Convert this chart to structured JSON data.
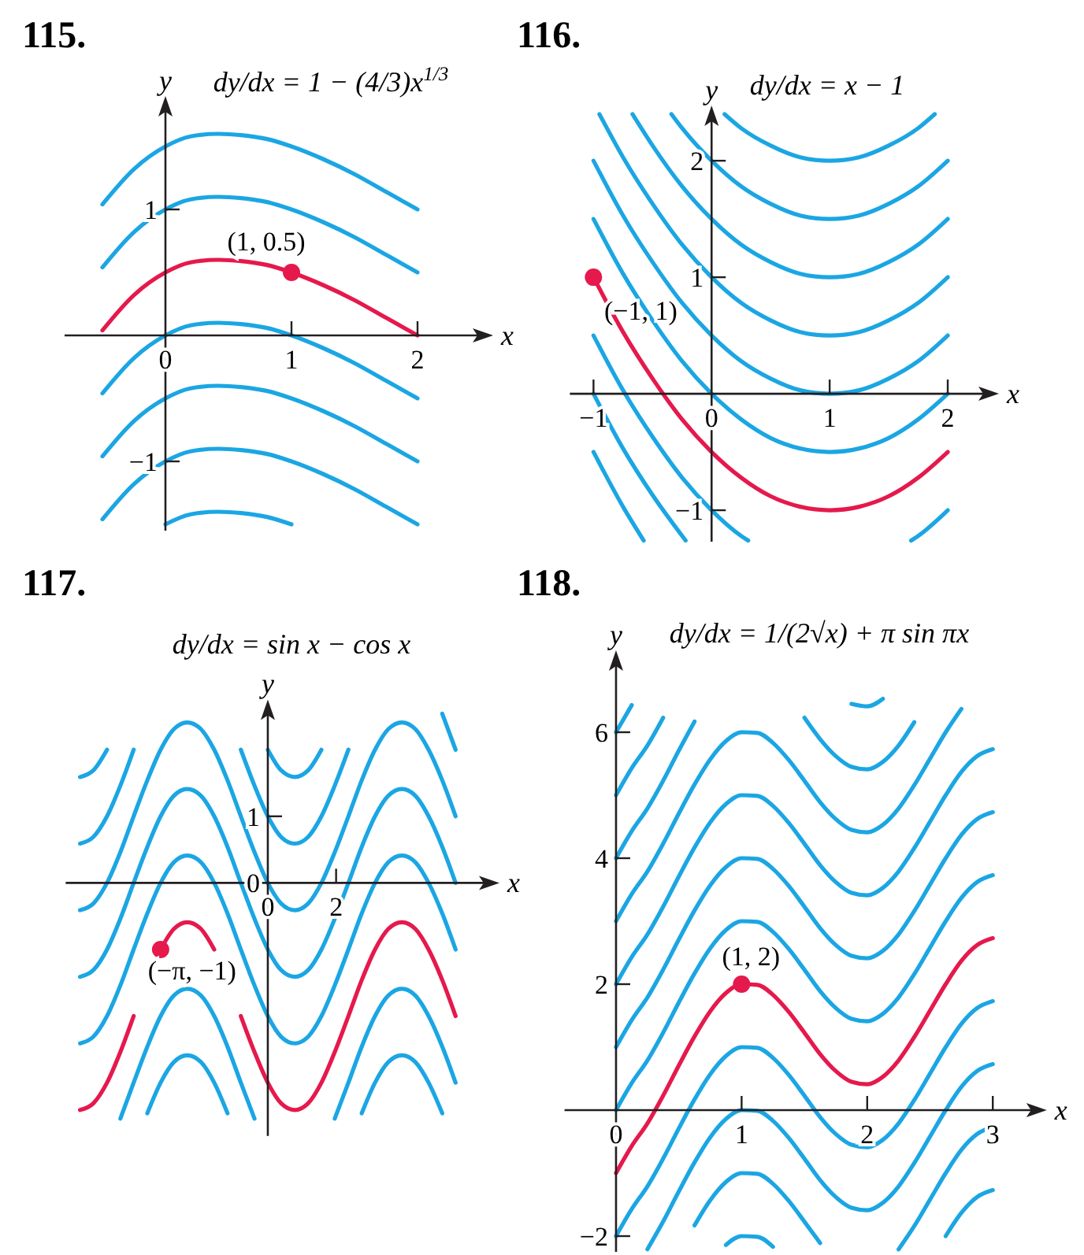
{
  "chart_data": [
    {
      "type": "line",
      "title": "115.",
      "subtitle": "dy/dx = 1 − (4/3)x$^{1/3}$",
      "xlabel": "x",
      "ylabel": "y",
      "xlim": [
        -0.8,
        2.55
      ],
      "ylim": [
        -1.55,
        1.85
      ],
      "xticks": [
        0,
        1,
        2
      ],
      "yticks": [
        -1,
        1
      ],
      "x": [
        -0.5,
        -0.25,
        0,
        0.2,
        0.42,
        0.6,
        0.8,
        1,
        1.25,
        1.5,
        1.75,
        2
      ],
      "series": [
        {
          "color": "#1ba6e3",
          "values": [
            1.04,
            1.32,
            1.5,
            1.58,
            1.6,
            1.59,
            1.56,
            1.5,
            1.4,
            1.28,
            1.14,
            1
          ]
        },
        {
          "color": "#1ba6e3",
          "values": [
            0.54,
            0.82,
            1,
            1.08,
            1.1,
            1.09,
            1.06,
            1,
            0.9,
            0.78,
            0.64,
            0.5
          ]
        },
        {
          "color": "#e5194c",
          "values": [
            0.04,
            0.32,
            0.5,
            0.58,
            0.6,
            0.59,
            0.56,
            0.5,
            0.4,
            0.28,
            0.14,
            0
          ]
        },
        {
          "color": "#1ba6e3",
          "values": [
            -0.46,
            -0.18,
            0,
            0.08,
            0.1,
            0.09,
            0.06,
            0,
            -0.1,
            -0.22,
            -0.36,
            -0.5
          ]
        },
        {
          "color": "#1ba6e3",
          "values": [
            -0.96,
            -0.68,
            -0.5,
            -0.42,
            -0.4,
            -0.41,
            -0.44,
            -0.5,
            -0.6,
            -0.72,
            -0.86,
            -1
          ]
        },
        {
          "color": "#1ba6e3",
          "values": [
            -1.46,
            -1.18,
            -1,
            -0.92,
            -0.9,
            -0.91,
            -0.94,
            -1,
            -1.1,
            -1.22,
            -1.36,
            -1.5
          ]
        },
        {
          "color": "#1ba6e3",
          "values": [
            null,
            null,
            -1.5,
            -1.42,
            -1.4,
            -1.41,
            -1.44,
            -1.5,
            null,
            null,
            null,
            null
          ]
        },
        {
          "type": "scatter",
          "marker": "circle",
          "color": "#e5194c",
          "x": [
            1
          ],
          "values": [
            0.5
          ]
        }
      ],
      "annotations": [
        {
          "text": "(1, 0.5)",
          "x": 1,
          "y": 0.5
        }
      ]
    },
    {
      "type": "line",
      "title": "116.",
      "subtitle": "dy/dx = x − 1",
      "xlabel": "x",
      "ylabel": "y",
      "xlim": [
        -1.2,
        2.38
      ],
      "ylim": [
        -1.27,
        2.42
      ],
      "xticks": [
        -1,
        0,
        1,
        2
      ],
      "yticks": [
        -1,
        1,
        2
      ],
      "series": [
        {
          "color": "#1ba6e3",
          "x": [
            0.11,
            0.25,
            0.5,
            0.75,
            1,
            1.25,
            1.5,
            1.75,
            1.89
          ],
          "values": [
            2.4,
            2.28,
            2.13,
            2.03,
            2,
            2.03,
            2.13,
            2.28,
            2.4
          ]
        },
        {
          "color": "#1ba6e3",
          "x": [
            -0.34,
            -0.25,
            0,
            0.25,
            0.5,
            0.75,
            1,
            1.25,
            1.5,
            1.75,
            2
          ],
          "values": [
            2.4,
            2.28,
            2,
            1.78,
            1.63,
            1.53,
            1.5,
            1.53,
            1.63,
            1.78,
            2
          ]
        },
        {
          "color": "#1ba6e3",
          "x": [
            -0.67,
            -0.5,
            -0.25,
            0,
            0.25,
            0.5,
            0.75,
            1,
            1.25,
            1.5,
            1.75,
            2
          ],
          "values": [
            2.4,
            2.13,
            1.78,
            1.5,
            1.28,
            1.13,
            1.03,
            1,
            1.03,
            1.13,
            1.28,
            1.5
          ]
        },
        {
          "color": "#1ba6e3",
          "x": [
            -0.95,
            -0.75,
            -0.5,
            -0.25,
            0,
            0.25,
            0.5,
            0.75,
            1,
            1.25,
            1.5,
            1.75,
            2
          ],
          "values": [
            2.4,
            2.03,
            1.63,
            1.28,
            1,
            0.78,
            0.63,
            0.53,
            0.5,
            0.53,
            0.63,
            0.78,
            1
          ]
        },
        {
          "color": "#1ba6e3",
          "x": [
            -1,
            -0.75,
            -0.5,
            -0.25,
            0,
            0.25,
            0.5,
            0.75,
            1,
            1.25,
            1.5,
            1.75,
            2
          ],
          "values": [
            2,
            1.53,
            1.13,
            0.78,
            0.5,
            0.28,
            0.13,
            0.03,
            0,
            0.03,
            0.13,
            0.28,
            0.5
          ]
        },
        {
          "color": "#1ba6e3",
          "x": [
            -1,
            -0.75,
            -0.5,
            -0.25,
            0,
            0.25,
            0.5,
            0.75,
            1,
            1.25,
            1.5,
            1.75,
            2
          ],
          "values": [
            1.5,
            1.03,
            0.63,
            0.28,
            0,
            -0.22,
            -0.38,
            -0.47,
            -0.5,
            -0.47,
            -0.38,
            -0.22,
            0
          ]
        },
        {
          "color": "#e5194c",
          "x": [
            -1,
            -0.75,
            -0.5,
            -0.25,
            0,
            0.25,
            0.5,
            0.75,
            1,
            1.25,
            1.5,
            1.75,
            2
          ],
          "values": [
            1,
            0.53,
            0.13,
            -0.22,
            -0.5,
            -0.72,
            -0.88,
            -0.97,
            -1,
            -0.97,
            -0.88,
            -0.72,
            -0.5
          ]
        },
        {
          "color": "#1ba6e3",
          "x": [
            -1,
            -0.75,
            -0.5,
            -0.25,
            0,
            0.25,
            0.31,
            1,
            1.69,
            1.75,
            2
          ],
          "values": [
            0.5,
            0.03,
            -0.37,
            -0.72,
            -1,
            -1.22,
            -1.26,
            null,
            -1.26,
            -1.22,
            -1
          ]
        },
        {
          "color": "#1ba6e3",
          "x": [
            -1,
            -0.75,
            -0.5,
            -0.22
          ],
          "values": [
            0,
            -0.47,
            -0.87,
            -1.26
          ]
        },
        {
          "color": "#1ba6e3",
          "x": [
            -1,
            -0.75,
            -0.575
          ],
          "values": [
            -0.5,
            -0.97,
            -1.26
          ]
        },
        {
          "type": "scatter",
          "marker": "circle",
          "color": "#e5194c",
          "x": [
            -1
          ],
          "values": [
            1
          ]
        }
      ],
      "annotations": [
        {
          "text": "(−1, 1)",
          "x": -1,
          "y": 1
        }
      ]
    },
    {
      "type": "line",
      "title": "117.",
      "subtitle": "dy/dx = sin x − cos x",
      "xlabel": "x",
      "ylabel": "y",
      "xlim": [
        -5.92,
        6.6
      ],
      "ylim": [
        -3.8,
        2.66
      ],
      "xticks": [
        0,
        2
      ],
      "yticks": [
        0,
        1
      ],
      "x": [
        -5.5,
        -5.11,
        -4.71,
        -4.32,
        -3.93,
        -3.53,
        -3.14,
        -2.75,
        -2.36,
        -1.96,
        -1.57,
        -1.18,
        -0.79,
        -0.39,
        0,
        0.39,
        0.79,
        1.18,
        1.57,
        1.96,
        2.36,
        2.75,
        3.14,
        3.53,
        3.93,
        4.32,
        4.71,
        5.11,
        5.5
      ],
      "series": [
        {
          "color": "#1ba6e3",
          "values": [
            1.59,
            1.69,
            2,
            null,
            null,
            null,
            null,
            null,
            null,
            null,
            null,
            null,
            null,
            null,
            2,
            1.69,
            1.59,
            1.69,
            2,
            null,
            null,
            null,
            null,
            null,
            null,
            null,
            null,
            null,
            null
          ]
        },
        {
          "color": "#1ba6e3",
          "values": [
            0.59,
            0.69,
            1,
            1.46,
            2,
            null,
            null,
            null,
            null,
            null,
            null,
            null,
            2,
            1.46,
            1,
            0.69,
            0.59,
            0.69,
            1,
            1.46,
            2,
            null,
            null,
            null,
            null,
            null,
            null,
            2.54,
            2
          ]
        },
        {
          "color": "#1ba6e3",
          "values": [
            -0.41,
            -0.31,
            0,
            0.46,
            1,
            1.54,
            2,
            2.31,
            2.41,
            2.31,
            2,
            1.54,
            1,
            0.46,
            0,
            -0.31,
            -0.41,
            -0.31,
            0,
            0.46,
            1,
            1.54,
            2,
            2.31,
            2.41,
            2.31,
            2,
            1.54,
            1
          ]
        },
        {
          "color": "#1ba6e3",
          "values": [
            -1.41,
            -1.31,
            -1,
            -0.54,
            0,
            0.54,
            1,
            1.31,
            1.41,
            1.31,
            1,
            0.54,
            0,
            -0.54,
            -1,
            -1.31,
            -1.41,
            -1.31,
            -1,
            -0.54,
            0,
            0.54,
            1,
            1.31,
            1.41,
            1.31,
            1,
            0.54,
            0
          ]
        },
        {
          "color": "#1ba6e3",
          "values": [
            -2.41,
            -2.31,
            -2,
            -1.54,
            -1,
            -0.46,
            0,
            0.31,
            0.41,
            0.31,
            0,
            -0.46,
            -1,
            -1.54,
            -2,
            -2.31,
            -2.41,
            -2.31,
            -2,
            -1.54,
            -1,
            -0.46,
            0,
            0.31,
            0.41,
            0.31,
            0,
            -0.46,
            -1
          ]
        },
        {
          "color": "#e5194c",
          "values": [
            -3.41,
            -3.31,
            -3,
            -2.54,
            -2,
            null,
            -1,
            -0.69,
            -0.59,
            -0.69,
            -1,
            null,
            -2,
            -2.54,
            -3,
            -3.31,
            -3.41,
            -3.31,
            -3,
            -2.54,
            -2,
            -1.46,
            -1,
            -0.69,
            -0.59,
            -0.69,
            -1,
            -1.46,
            -2
          ]
        },
        {
          "color": "#1ba6e3",
          "values": [
            null,
            null,
            null,
            -3.54,
            -3,
            -2.46,
            -2,
            -1.69,
            -1.59,
            -1.69,
            -2,
            -2.46,
            -3,
            -3.54,
            null,
            null,
            null,
            null,
            null,
            -3.54,
            -3,
            -2.46,
            -2,
            -1.69,
            -1.59,
            -1.69,
            -2,
            -2.46,
            -3
          ]
        },
        {
          "color": "#1ba6e3",
          "values": [
            null,
            null,
            null,
            null,
            null,
            -3.46,
            -3,
            -2.69,
            -2.59,
            -2.69,
            -3,
            -3.46,
            null,
            null,
            null,
            null,
            null,
            null,
            null,
            null,
            null,
            -3.46,
            -3,
            -2.69,
            -2.59,
            -2.69,
            -3,
            -3.46,
            null
          ]
        },
        {
          "type": "scatter",
          "marker": "circle",
          "color": "#e5194c",
          "x": [
            -3.14
          ],
          "values": [
            -1
          ]
        }
      ],
      "annotations": [
        {
          "text": "(−π, −1)",
          "x": -3.14,
          "y": -1
        }
      ]
    },
    {
      "type": "line",
      "title": "118.",
      "subtitle": "dy/dx = 1/(2√x) + π sin πx",
      "xlabel": "x",
      "ylabel": "y",
      "xlim": [
        -0.41,
        3.38
      ],
      "ylim": [
        -2.25,
        7.2
      ],
      "xticks": [
        0,
        1,
        2,
        3
      ],
      "yticks": [
        -2,
        2,
        4,
        6
      ],
      "x": [
        0,
        0.125,
        0.25,
        0.375,
        0.5,
        0.625,
        0.75,
        0.875,
        1,
        1.125,
        1.25,
        1.375,
        1.5,
        1.625,
        1.75,
        1.875,
        2,
        2.125,
        2.25,
        2.375,
        2.5,
        2.625,
        2.75,
        2.875,
        3
      ],
      "series": [
        {
          "color": "#1ba6e3",
          "values": [
            6,
            6.43,
            null,
            null,
            null,
            null,
            null,
            null,
            null,
            null,
            null,
            null,
            null,
            null,
            null,
            null,
            null,
            null,
            null,
            null,
            null,
            null,
            null,
            null,
            null
          ]
        },
        {
          "color": "#1ba6e3",
          "values": [
            5,
            5.43,
            5.79,
            6.23,
            null,
            null,
            null,
            null,
            null,
            null,
            null,
            null,
            null,
            null,
            null,
            6.45,
            6.41,
            6.53,
            null,
            null,
            null,
            null,
            null,
            null,
            null
          ]
        },
        {
          "color": "#1ba6e3",
          "values": [
            4,
            4.43,
            4.79,
            5.23,
            5.71,
            6.17,
            null,
            null,
            null,
            null,
            null,
            null,
            6.23,
            5.89,
            5.62,
            5.45,
            5.41,
            5.53,
            5.79,
            6.16,
            null,
            null,
            null,
            null,
            null
          ]
        },
        {
          "color": "#1ba6e3",
          "values": [
            3,
            3.43,
            3.79,
            4.23,
            4.71,
            5.17,
            5.57,
            5.86,
            6,
            5.99,
            5.83,
            5.56,
            5.23,
            4.89,
            4.62,
            4.45,
            4.41,
            4.53,
            4.79,
            5.16,
            5.58,
            6,
            6.37,
            null,
            null
          ]
        },
        {
          "color": "#1ba6e3",
          "values": [
            2,
            2.43,
            2.79,
            3.23,
            3.71,
            4.17,
            4.57,
            4.86,
            5,
            4.99,
            4.83,
            4.56,
            4.23,
            3.89,
            3.62,
            3.45,
            3.41,
            3.53,
            3.79,
            4.16,
            4.58,
            5,
            5.37,
            5.62,
            5.73
          ]
        },
        {
          "color": "#1ba6e3",
          "values": [
            1,
            1.43,
            1.79,
            2.23,
            2.71,
            3.17,
            3.57,
            3.86,
            4,
            3.99,
            3.83,
            3.56,
            3.23,
            2.89,
            2.62,
            2.45,
            2.41,
            2.53,
            2.79,
            3.16,
            3.58,
            4,
            4.37,
            4.62,
            4.73
          ]
        },
        {
          "color": "#1ba6e3",
          "values": [
            0,
            0.43,
            0.79,
            1.23,
            1.71,
            2.17,
            2.57,
            2.86,
            3,
            2.99,
            2.83,
            2.56,
            2.23,
            1.89,
            1.62,
            1.45,
            1.41,
            1.53,
            1.79,
            2.16,
            2.58,
            3,
            3.37,
            3.62,
            3.73
          ]
        },
        {
          "color": "#e5194c",
          "values": [
            -1,
            -0.57,
            -0.21,
            0.23,
            0.71,
            1.17,
            1.57,
            1.86,
            2,
            1.99,
            1.83,
            1.56,
            1.23,
            0.89,
            0.62,
            0.45,
            0.41,
            0.53,
            0.79,
            1.16,
            1.58,
            2,
            2.37,
            2.62,
            2.73
          ]
        },
        {
          "color": "#1ba6e3",
          "values": [
            -2,
            -1.57,
            -1.21,
            -0.77,
            -0.29,
            0.17,
            0.57,
            0.86,
            1,
            0.99,
            0.83,
            0.56,
            0.23,
            -0.11,
            -0.38,
            -0.55,
            -0.59,
            -0.47,
            -0.21,
            0.16,
            0.58,
            1,
            1.37,
            1.62,
            1.73
          ]
        },
        {
          "color": "#1ba6e3",
          "values": [
            null,
            null,
            -2.21,
            -1.77,
            -1.29,
            -0.83,
            -0.43,
            -0.14,
            0,
            -0.01,
            -0.17,
            -0.44,
            -0.77,
            -1.11,
            -1.38,
            -1.55,
            -1.59,
            -1.47,
            -1.21,
            -0.84,
            -0.42,
            0,
            0.37,
            0.62,
            0.73
          ]
        },
        {
          "color": "#1ba6e3",
          "values": [
            null,
            null,
            null,
            null,
            null,
            -1.83,
            -1.43,
            -1.14,
            -1,
            -1.01,
            -1.17,
            -1.44,
            -1.77,
            -2.11,
            null,
            null,
            null,
            null,
            -2.21,
            -1.84,
            -1.42,
            -1,
            -0.63,
            -0.38,
            -0.27
          ]
        },
        {
          "color": "#1ba6e3",
          "values": [
            null,
            null,
            null,
            null,
            null,
            null,
            null,
            -2.14,
            -2,
            -2.01,
            -2.17,
            null,
            null,
            null,
            null,
            null,
            null,
            null,
            null,
            null,
            null,
            -2,
            -1.63,
            -1.38,
            -1.27
          ]
        },
        {
          "type": "scatter",
          "marker": "circle",
          "color": "#e5194c",
          "x": [
            1
          ],
          "values": [
            2
          ]
        }
      ],
      "annotations": [
        {
          "text": "(1, 2)",
          "x": 1,
          "y": 2
        }
      ]
    }
  ]
}
